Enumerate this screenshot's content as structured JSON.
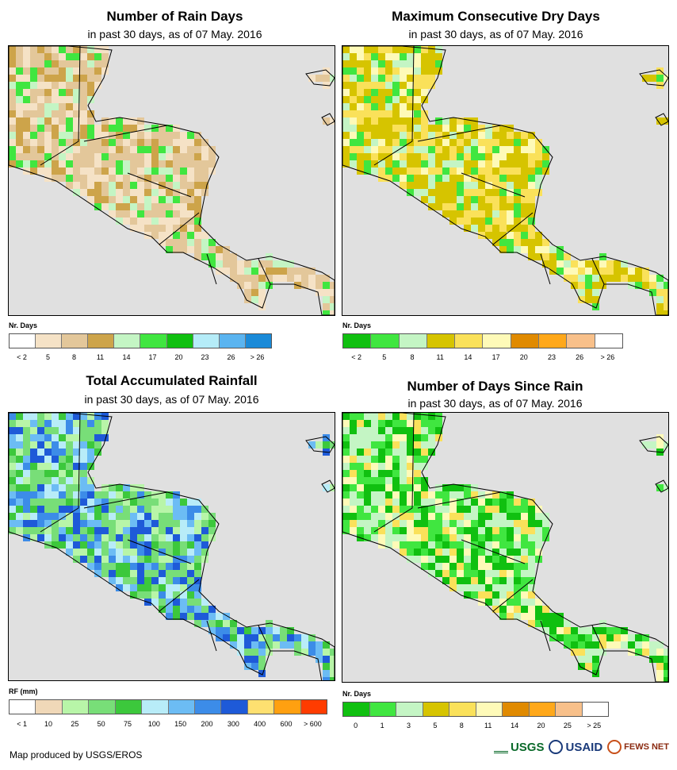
{
  "panels": [
    {
      "id": "rain-days",
      "title": "Number of Rain Days",
      "subtitle": "in past 30 days, as of 07 May. 2016",
      "legend_title": "Nr. Days",
      "legend_colors": [
        "#ffffff",
        "#f5e2c6",
        "#e3c79a",
        "#cda44a",
        "#c4f5c4",
        "#40e640",
        "#10c010",
        "#b5ecf8",
        "#5ab4f0",
        "#1a8ad8"
      ],
      "legend_ticks": [
        "< 2",
        "5",
        "8",
        "11",
        "14",
        "17",
        "20",
        "23",
        "26",
        "> 26"
      ],
      "map_style": "rain-days"
    },
    {
      "id": "dry-days",
      "title": "Maximum Consecutive Dry Days",
      "subtitle": "in past 30 days, as of 07 May. 2016",
      "legend_title": "Nr. Days",
      "legend_colors": [
        "#10c010",
        "#40e640",
        "#c4f5c4",
        "#d6c400",
        "#fae15a",
        "#fefab8",
        "#e08a00",
        "#ffa81a",
        "#f8c08a",
        "#ffffff"
      ],
      "legend_ticks": [
        "< 2",
        "5",
        "8",
        "11",
        "14",
        "17",
        "20",
        "23",
        "26",
        "> 26"
      ],
      "map_style": "dry-days"
    },
    {
      "id": "total-rainfall",
      "title": "Total Accumulated Rainfall",
      "subtitle": "in past 30 days, as of 07 May. 2016",
      "legend_title": "RF (mm)",
      "legend_colors": [
        "#ffffff",
        "#f0d8b8",
        "#b8f5a8",
        "#78de78",
        "#3cc83c",
        "#b8ecf8",
        "#6cbcf4",
        "#3c8ce8",
        "#1e5ad8",
        "#fee070",
        "#ffa010",
        "#ff3c00"
      ],
      "legend_ticks": [
        "< 1",
        "10",
        "25",
        "50",
        "75",
        "100",
        "150",
        "200",
        "300",
        "400",
        "600",
        "> 600"
      ],
      "map_style": "rainfall"
    },
    {
      "id": "days-since-rain",
      "title": "Number of Days Since Rain",
      "subtitle": "in past 30 days, as of 07 May. 2016",
      "legend_title": "Nr. Days",
      "legend_colors": [
        "#10c010",
        "#40e640",
        "#c4f5c4",
        "#d6c400",
        "#fae15a",
        "#fefab8",
        "#e08a00",
        "#ffa81a",
        "#f8c08a",
        "#ffffff"
      ],
      "legend_ticks": [
        "0",
        "1",
        "3",
        "5",
        "8",
        "11",
        "14",
        "20",
        "25",
        "> 25"
      ],
      "map_style": "since-rain"
    }
  ],
  "footer": "Map produced by USGS/EROS",
  "logos": {
    "usgs": "USGS",
    "usaid": "USAID",
    "fews": "FEWS NET"
  },
  "colors": {
    "ocean": "#e0e0e0",
    "border": "#000000"
  }
}
